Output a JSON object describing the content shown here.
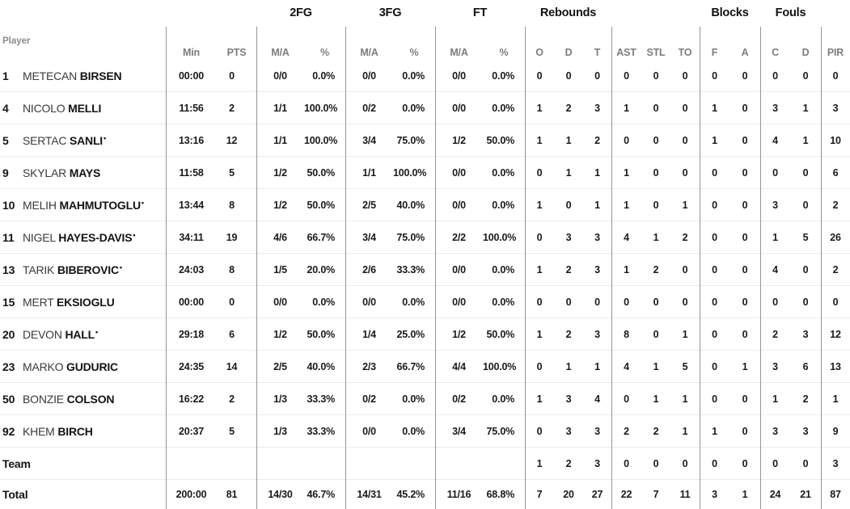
{
  "colors": {
    "text": "#1a1a1a",
    "muted": "#7d7d7d",
    "vline": "#969696",
    "hline": "#ebebeb",
    "bg": "#ffffff"
  },
  "table": {
    "player_col_label": "Player",
    "groups": {
      "fg2": "2FG",
      "fg3": "3FG",
      "ft": "FT",
      "rebounds": "Rebounds",
      "blocks": "Blocks",
      "fouls": "Fouls"
    },
    "subheaders": {
      "min": "Min",
      "pts": "PTS",
      "ma": "M/A",
      "pct": "%",
      "o": "O",
      "d": "D",
      "t": "T",
      "ast": "AST",
      "stl": "STL",
      "to": "TO",
      "f": "F",
      "a": "A",
      "c": "C",
      "d2": "D",
      "pir": "PIR"
    },
    "starter_mark": "•"
  },
  "rows": [
    {
      "no": "1",
      "first": "METECAN",
      "last": "BIRSEN",
      "starter": false,
      "min": "00:00",
      "pts": "0",
      "fg2_ma": "0/0",
      "fg2_pct": "0.0%",
      "fg3_ma": "0/0",
      "fg3_pct": "0.0%",
      "ft_ma": "0/0",
      "ft_pct": "0.0%",
      "reb_o": "0",
      "reb_d": "0",
      "reb_t": "0",
      "ast": "0",
      "stl": "0",
      "to": "0",
      "blk_f": "0",
      "blk_a": "0",
      "foul_c": "0",
      "foul_d": "0",
      "pir": "0"
    },
    {
      "no": "4",
      "first": "NICOLO",
      "last": "MELLI",
      "starter": false,
      "min": "11:56",
      "pts": "2",
      "fg2_ma": "1/1",
      "fg2_pct": "100.0%",
      "fg3_ma": "0/2",
      "fg3_pct": "0.0%",
      "ft_ma": "0/0",
      "ft_pct": "0.0%",
      "reb_o": "1",
      "reb_d": "2",
      "reb_t": "3",
      "ast": "1",
      "stl": "0",
      "to": "0",
      "blk_f": "1",
      "blk_a": "0",
      "foul_c": "3",
      "foul_d": "1",
      "pir": "3"
    },
    {
      "no": "5",
      "first": "SERTAC",
      "last": "SANLI",
      "starter": true,
      "min": "13:16",
      "pts": "12",
      "fg2_ma": "1/1",
      "fg2_pct": "100.0%",
      "fg3_ma": "3/4",
      "fg3_pct": "75.0%",
      "ft_ma": "1/2",
      "ft_pct": "50.0%",
      "reb_o": "1",
      "reb_d": "1",
      "reb_t": "2",
      "ast": "0",
      "stl": "0",
      "to": "0",
      "blk_f": "1",
      "blk_a": "0",
      "foul_c": "4",
      "foul_d": "1",
      "pir": "10"
    },
    {
      "no": "9",
      "first": "SKYLAR",
      "last": "MAYS",
      "starter": false,
      "min": "11:58",
      "pts": "5",
      "fg2_ma": "1/2",
      "fg2_pct": "50.0%",
      "fg3_ma": "1/1",
      "fg3_pct": "100.0%",
      "ft_ma": "0/0",
      "ft_pct": "0.0%",
      "reb_o": "0",
      "reb_d": "1",
      "reb_t": "1",
      "ast": "1",
      "stl": "0",
      "to": "0",
      "blk_f": "0",
      "blk_a": "0",
      "foul_c": "0",
      "foul_d": "0",
      "pir": "6"
    },
    {
      "no": "10",
      "first": "MELIH",
      "last": "MAHMUTOGLU",
      "starter": true,
      "min": "13:44",
      "pts": "8",
      "fg2_ma": "1/2",
      "fg2_pct": "50.0%",
      "fg3_ma": "2/5",
      "fg3_pct": "40.0%",
      "ft_ma": "0/0",
      "ft_pct": "0.0%",
      "reb_o": "1",
      "reb_d": "0",
      "reb_t": "1",
      "ast": "1",
      "stl": "0",
      "to": "1",
      "blk_f": "0",
      "blk_a": "0",
      "foul_c": "3",
      "foul_d": "0",
      "pir": "2"
    },
    {
      "no": "11",
      "first": "NIGEL",
      "last": "HAYES-DAVIS",
      "starter": true,
      "min": "34:11",
      "pts": "19",
      "fg2_ma": "4/6",
      "fg2_pct": "66.7%",
      "fg3_ma": "3/4",
      "fg3_pct": "75.0%",
      "ft_ma": "2/2",
      "ft_pct": "100.0%",
      "reb_o": "0",
      "reb_d": "3",
      "reb_t": "3",
      "ast": "4",
      "stl": "1",
      "to": "2",
      "blk_f": "0",
      "blk_a": "0",
      "foul_c": "1",
      "foul_d": "5",
      "pir": "26"
    },
    {
      "no": "13",
      "first": "TARIK",
      "last": "BIBEROVIC",
      "starter": true,
      "min": "24:03",
      "pts": "8",
      "fg2_ma": "1/5",
      "fg2_pct": "20.0%",
      "fg3_ma": "2/6",
      "fg3_pct": "33.3%",
      "ft_ma": "0/0",
      "ft_pct": "0.0%",
      "reb_o": "1",
      "reb_d": "2",
      "reb_t": "3",
      "ast": "1",
      "stl": "2",
      "to": "0",
      "blk_f": "0",
      "blk_a": "0",
      "foul_c": "4",
      "foul_d": "0",
      "pir": "2"
    },
    {
      "no": "15",
      "first": "MERT",
      "last": "EKSIOGLU",
      "starter": false,
      "min": "00:00",
      "pts": "0",
      "fg2_ma": "0/0",
      "fg2_pct": "0.0%",
      "fg3_ma": "0/0",
      "fg3_pct": "0.0%",
      "ft_ma": "0/0",
      "ft_pct": "0.0%",
      "reb_o": "0",
      "reb_d": "0",
      "reb_t": "0",
      "ast": "0",
      "stl": "0",
      "to": "0",
      "blk_f": "0",
      "blk_a": "0",
      "foul_c": "0",
      "foul_d": "0",
      "pir": "0"
    },
    {
      "no": "20",
      "first": "DEVON",
      "last": "HALL",
      "starter": true,
      "min": "29:18",
      "pts": "6",
      "fg2_ma": "1/2",
      "fg2_pct": "50.0%",
      "fg3_ma": "1/4",
      "fg3_pct": "25.0%",
      "ft_ma": "1/2",
      "ft_pct": "50.0%",
      "reb_o": "1",
      "reb_d": "2",
      "reb_t": "3",
      "ast": "8",
      "stl": "0",
      "to": "1",
      "blk_f": "0",
      "blk_a": "0",
      "foul_c": "2",
      "foul_d": "3",
      "pir": "12"
    },
    {
      "no": "23",
      "first": "MARKO",
      "last": "GUDURIC",
      "starter": false,
      "min": "24:35",
      "pts": "14",
      "fg2_ma": "2/5",
      "fg2_pct": "40.0%",
      "fg3_ma": "2/3",
      "fg3_pct": "66.7%",
      "ft_ma": "4/4",
      "ft_pct": "100.0%",
      "reb_o": "0",
      "reb_d": "1",
      "reb_t": "1",
      "ast": "4",
      "stl": "1",
      "to": "5",
      "blk_f": "0",
      "blk_a": "1",
      "foul_c": "3",
      "foul_d": "6",
      "pir": "13"
    },
    {
      "no": "50",
      "first": "BONZIE",
      "last": "COLSON",
      "starter": false,
      "min": "16:22",
      "pts": "2",
      "fg2_ma": "1/3",
      "fg2_pct": "33.3%",
      "fg3_ma": "0/2",
      "fg3_pct": "0.0%",
      "ft_ma": "0/2",
      "ft_pct": "0.0%",
      "reb_o": "1",
      "reb_d": "3",
      "reb_t": "4",
      "ast": "0",
      "stl": "1",
      "to": "1",
      "blk_f": "0",
      "blk_a": "0",
      "foul_c": "1",
      "foul_d": "2",
      "pir": "1"
    },
    {
      "no": "92",
      "first": "KHEM",
      "last": "BIRCH",
      "starter": false,
      "min": "20:37",
      "pts": "5",
      "fg2_ma": "1/3",
      "fg2_pct": "33.3%",
      "fg3_ma": "0/0",
      "fg3_pct": "0.0%",
      "ft_ma": "3/4",
      "ft_pct": "75.0%",
      "reb_o": "0",
      "reb_d": "3",
      "reb_t": "3",
      "ast": "2",
      "stl": "2",
      "to": "1",
      "blk_f": "1",
      "blk_a": "0",
      "foul_c": "3",
      "foul_d": "3",
      "pir": "9"
    },
    {
      "label": "Team",
      "min": "",
      "pts": "",
      "fg2_ma": "",
      "fg2_pct": "",
      "fg3_ma": "",
      "fg3_pct": "",
      "ft_ma": "",
      "ft_pct": "",
      "reb_o": "1",
      "reb_d": "2",
      "reb_t": "3",
      "ast": "0",
      "stl": "0",
      "to": "0",
      "blk_f": "0",
      "blk_a": "0",
      "foul_c": "0",
      "foul_d": "0",
      "pir": "3"
    },
    {
      "label": "Total",
      "total": true,
      "min": "200:00",
      "pts": "81",
      "fg2_ma": "14/30",
      "fg2_pct": "46.7%",
      "fg3_ma": "14/31",
      "fg3_pct": "45.2%",
      "ft_ma": "11/16",
      "ft_pct": "68.8%",
      "reb_o": "7",
      "reb_d": "20",
      "reb_t": "27",
      "ast": "22",
      "stl": "7",
      "to": "11",
      "blk_f": "3",
      "blk_a": "1",
      "foul_c": "24",
      "foul_d": "21",
      "pir": "87"
    }
  ]
}
